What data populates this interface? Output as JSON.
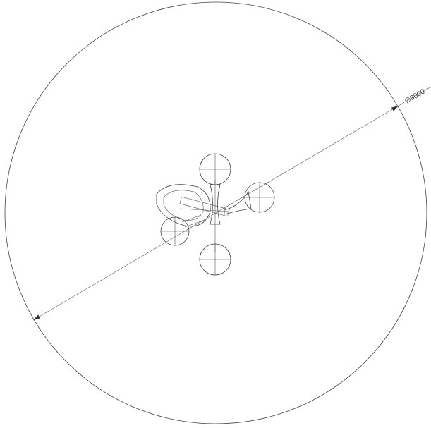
{
  "dimension": {
    "label": "∅9000"
  }
}
